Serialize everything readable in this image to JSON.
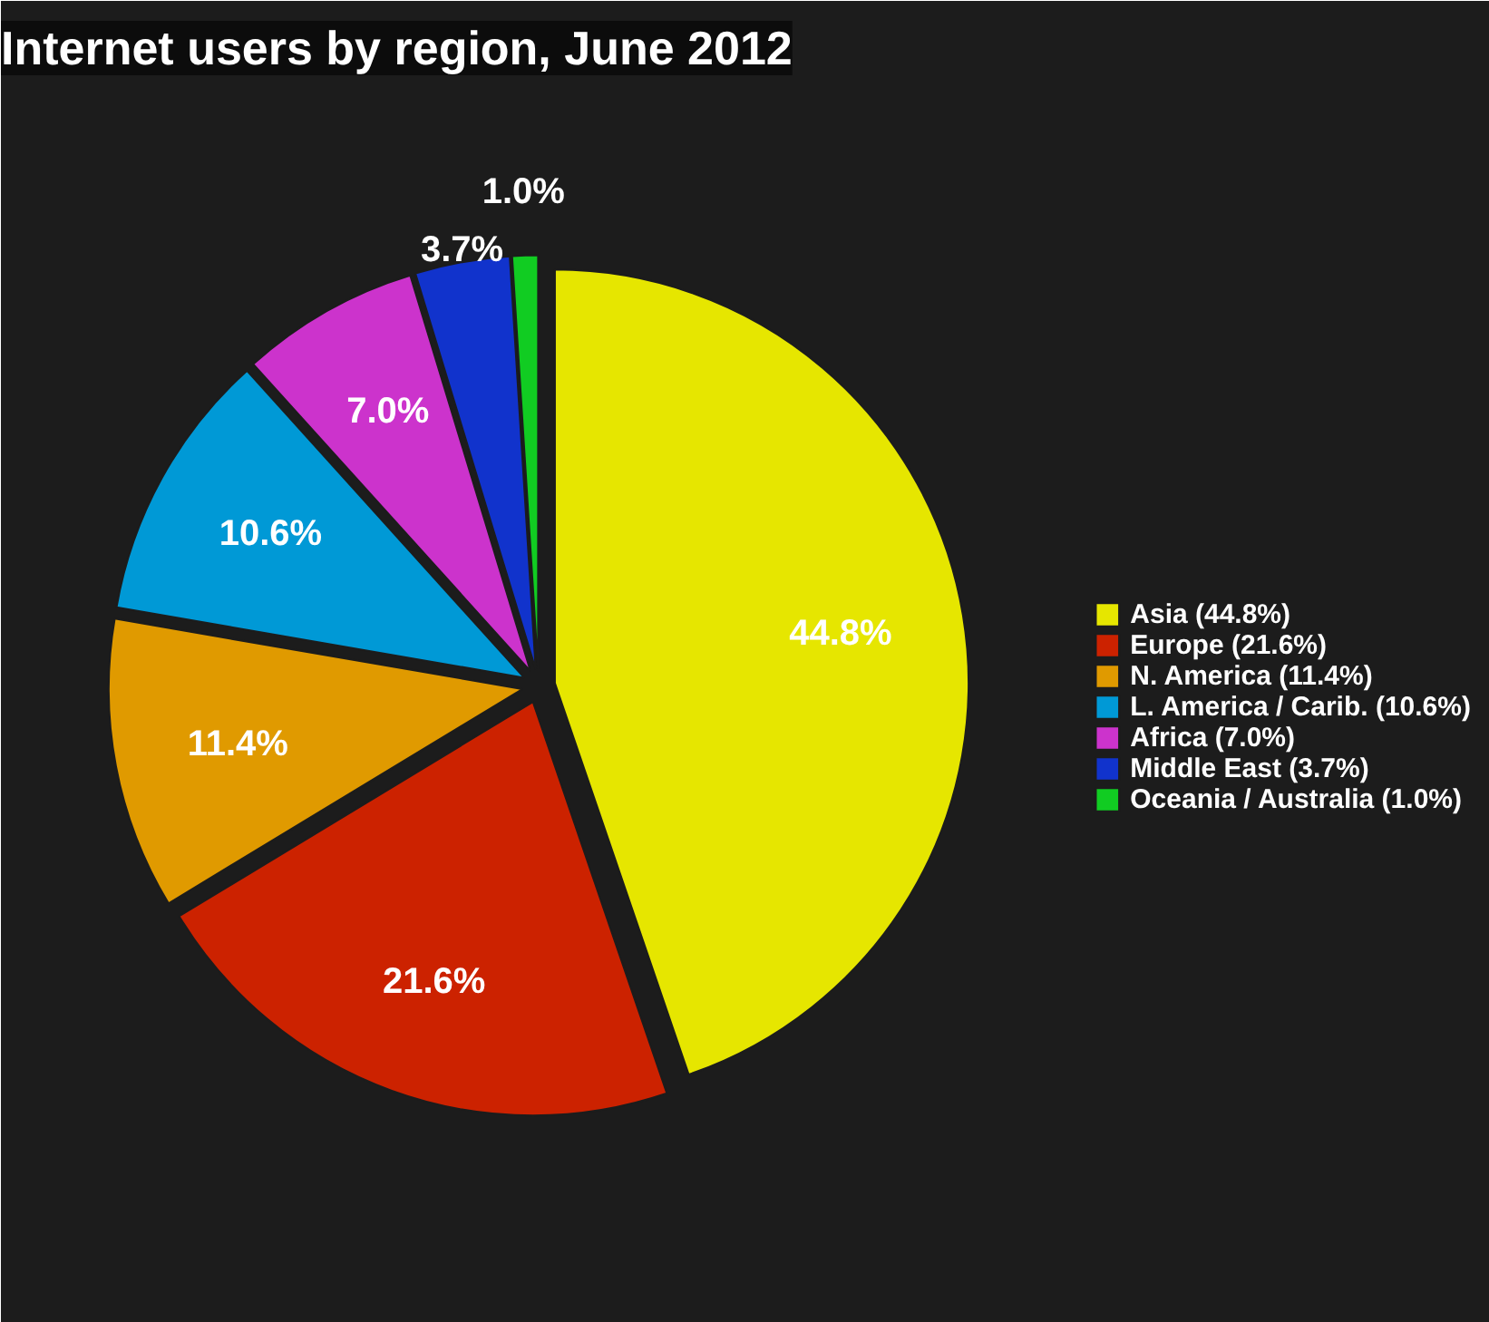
{
  "chart_data": {
    "type": "pie",
    "title": "Internet users by region, June 2012",
    "categories": [
      "Asia (44.8%)",
      "Europe (21.6%)",
      "N. America (11.4%)",
      "L. America / Carib. (10.6%)",
      "Africa (7.0%)",
      "Middle East (3.7%)",
      "Oceania / Australia (1.0%)"
    ],
    "values": [
      44.8,
      21.6,
      11.4,
      10.6,
      7.0,
      3.7,
      1.0
    ],
    "colors": [
      "#e6e600",
      "#cc2200",
      "#e09a00",
      "#0099d6",
      "#cc33cc",
      "#1133cc",
      "#11cc22"
    ],
    "value_labels": [
      "44.8%",
      "21.6%",
      "11.4%",
      "10.6%",
      "7.0%",
      "3.7%",
      "1.0%"
    ],
    "legend": "right"
  }
}
